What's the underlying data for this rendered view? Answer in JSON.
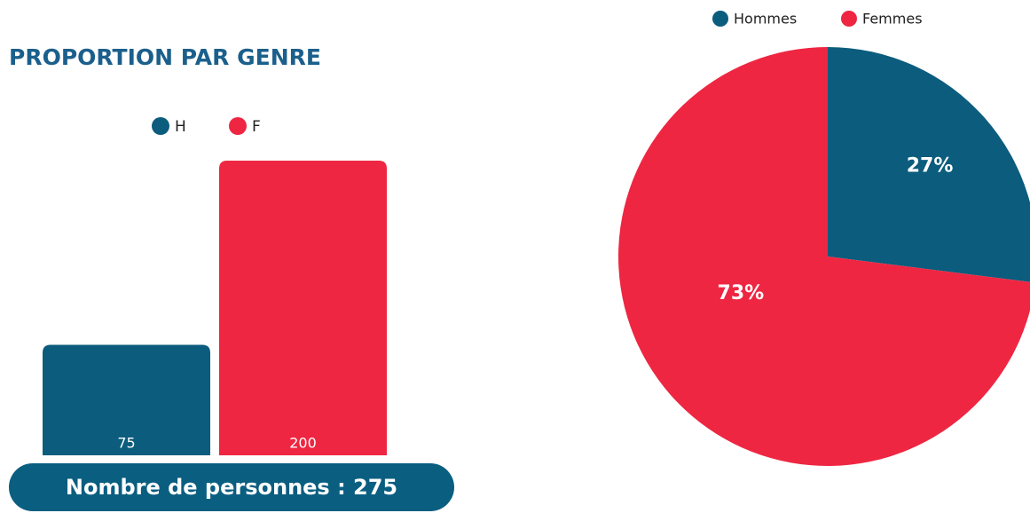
{
  "title": "PROPORTION PAR GENRE",
  "total_label": "Nombre de personnes : 275",
  "chart_data": [
    {
      "type": "bar",
      "series": [
        {
          "name": "H",
          "color": "#0b5c7d",
          "values": [
            75
          ]
        },
        {
          "name": "F",
          "color": "#ee2642",
          "values": [
            200
          ]
        }
      ],
      "ylim": [
        0,
        200
      ]
    },
    {
      "type": "pie",
      "categories": [
        "Hommes",
        "Femmes"
      ],
      "values": [
        27,
        73
      ],
      "value_labels": [
        "27%",
        "73%"
      ],
      "colors": [
        "#0b5c7d",
        "#ee2642"
      ]
    }
  ]
}
